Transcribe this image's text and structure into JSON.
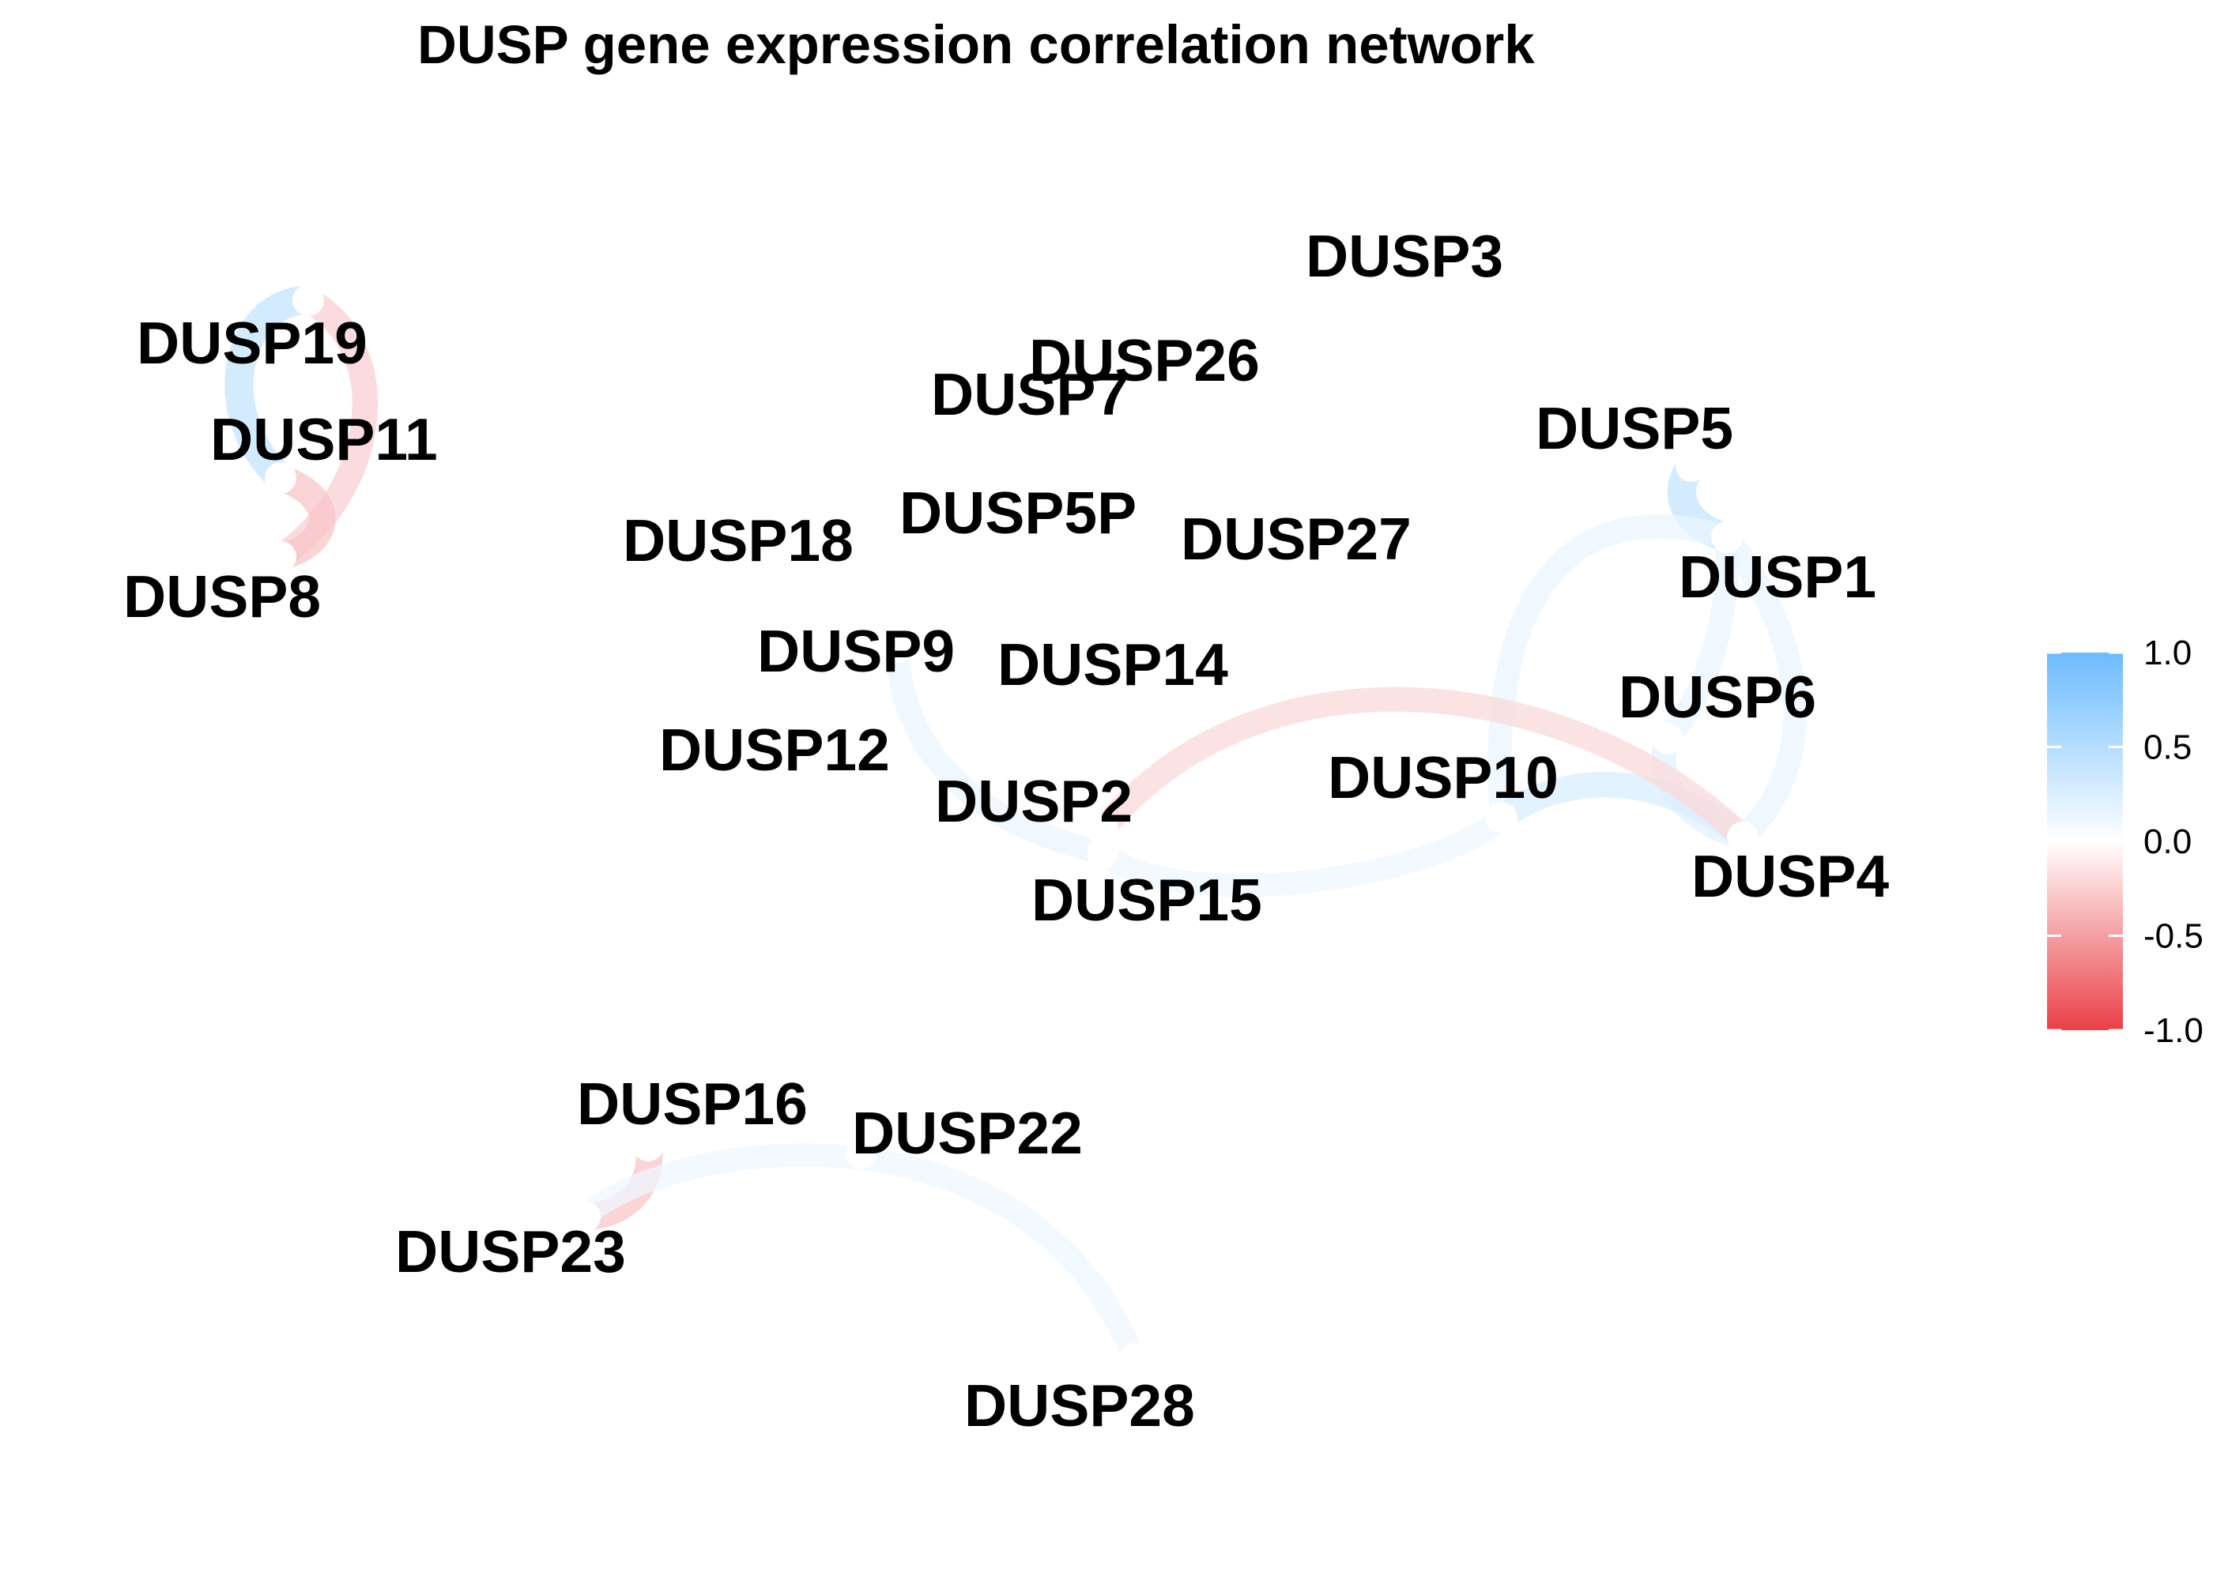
{
  "title": "DUSP gene expression correlation network",
  "color_scale": {
    "max_color": "#6bbbff",
    "mid_color": "#ffffff",
    "min_color": "#ea3f46",
    "min": -1.0,
    "max": 1.0,
    "ticks": [
      "1.0",
      "0.5",
      "0.0",
      "-0.5",
      "-1.0"
    ],
    "tick_values": [
      1.0,
      0.5,
      0.0,
      -0.5,
      -1.0
    ]
  },
  "nodes": [
    {
      "id": "DUSP3",
      "label": "DUSP3"
    },
    {
      "id": "DUSP19",
      "label": "DUSP19"
    },
    {
      "id": "DUSP26",
      "label": "DUSP26"
    },
    {
      "id": "DUSP7",
      "label": "DUSP7"
    },
    {
      "id": "DUSP5",
      "label": "DUSP5"
    },
    {
      "id": "DUSP11",
      "label": "DUSP11"
    },
    {
      "id": "DUSP5P",
      "label": "DUSP5P"
    },
    {
      "id": "DUSP18",
      "label": "DUSP18"
    },
    {
      "id": "DUSP27",
      "label": "DUSP27"
    },
    {
      "id": "DUSP1",
      "label": "DUSP1"
    },
    {
      "id": "DUSP8",
      "label": "DUSP8"
    },
    {
      "id": "DUSP9",
      "label": "DUSP9"
    },
    {
      "id": "DUSP14",
      "label": "DUSP14"
    },
    {
      "id": "DUSP6",
      "label": "DUSP6"
    },
    {
      "id": "DUSP12",
      "label": "DUSP12"
    },
    {
      "id": "DUSP10",
      "label": "DUSP10"
    },
    {
      "id": "DUSP2",
      "label": "DUSP2"
    },
    {
      "id": "DUSP4",
      "label": "DUSP4"
    },
    {
      "id": "DUSP15",
      "label": "DUSP15"
    },
    {
      "id": "DUSP16",
      "label": "DUSP16"
    },
    {
      "id": "DUSP22",
      "label": "DUSP22"
    },
    {
      "id": "DUSP23",
      "label": "DUSP23"
    },
    {
      "id": "DUSP28",
      "label": "DUSP28"
    }
  ],
  "edges": [
    {
      "from": "DUSP19",
      "to": "DUSP11",
      "correlation": 0.4
    },
    {
      "from": "DUSP19",
      "to": "DUSP8",
      "correlation": -0.25
    },
    {
      "from": "DUSP11",
      "to": "DUSP8",
      "correlation": -0.3
    },
    {
      "from": "DUSP5",
      "to": "DUSP1",
      "correlation": 0.4
    },
    {
      "from": "DUSP1",
      "to": "DUSP10",
      "correlation": 0.15
    },
    {
      "from": "DUSP1",
      "to": "DUSP6",
      "correlation": 0.15
    },
    {
      "from": "DUSP1",
      "to": "DUSP4",
      "correlation": 0.15
    },
    {
      "from": "DUSP6",
      "to": "DUSP4",
      "correlation": 0.2
    },
    {
      "from": "DUSP10",
      "to": "DUSP4",
      "correlation": 0.25
    },
    {
      "from": "DUSP2",
      "to": "DUSP4",
      "correlation": -0.2
    },
    {
      "from": "DUSP9",
      "to": "DUSP15",
      "correlation": 0.15
    },
    {
      "from": "DUSP15",
      "to": "DUSP10",
      "correlation": 0.12
    },
    {
      "from": "DUSP16",
      "to": "DUSP23",
      "correlation": -0.3
    },
    {
      "from": "DUSP23",
      "to": "DUSP28",
      "correlation": 0.12
    }
  ]
}
